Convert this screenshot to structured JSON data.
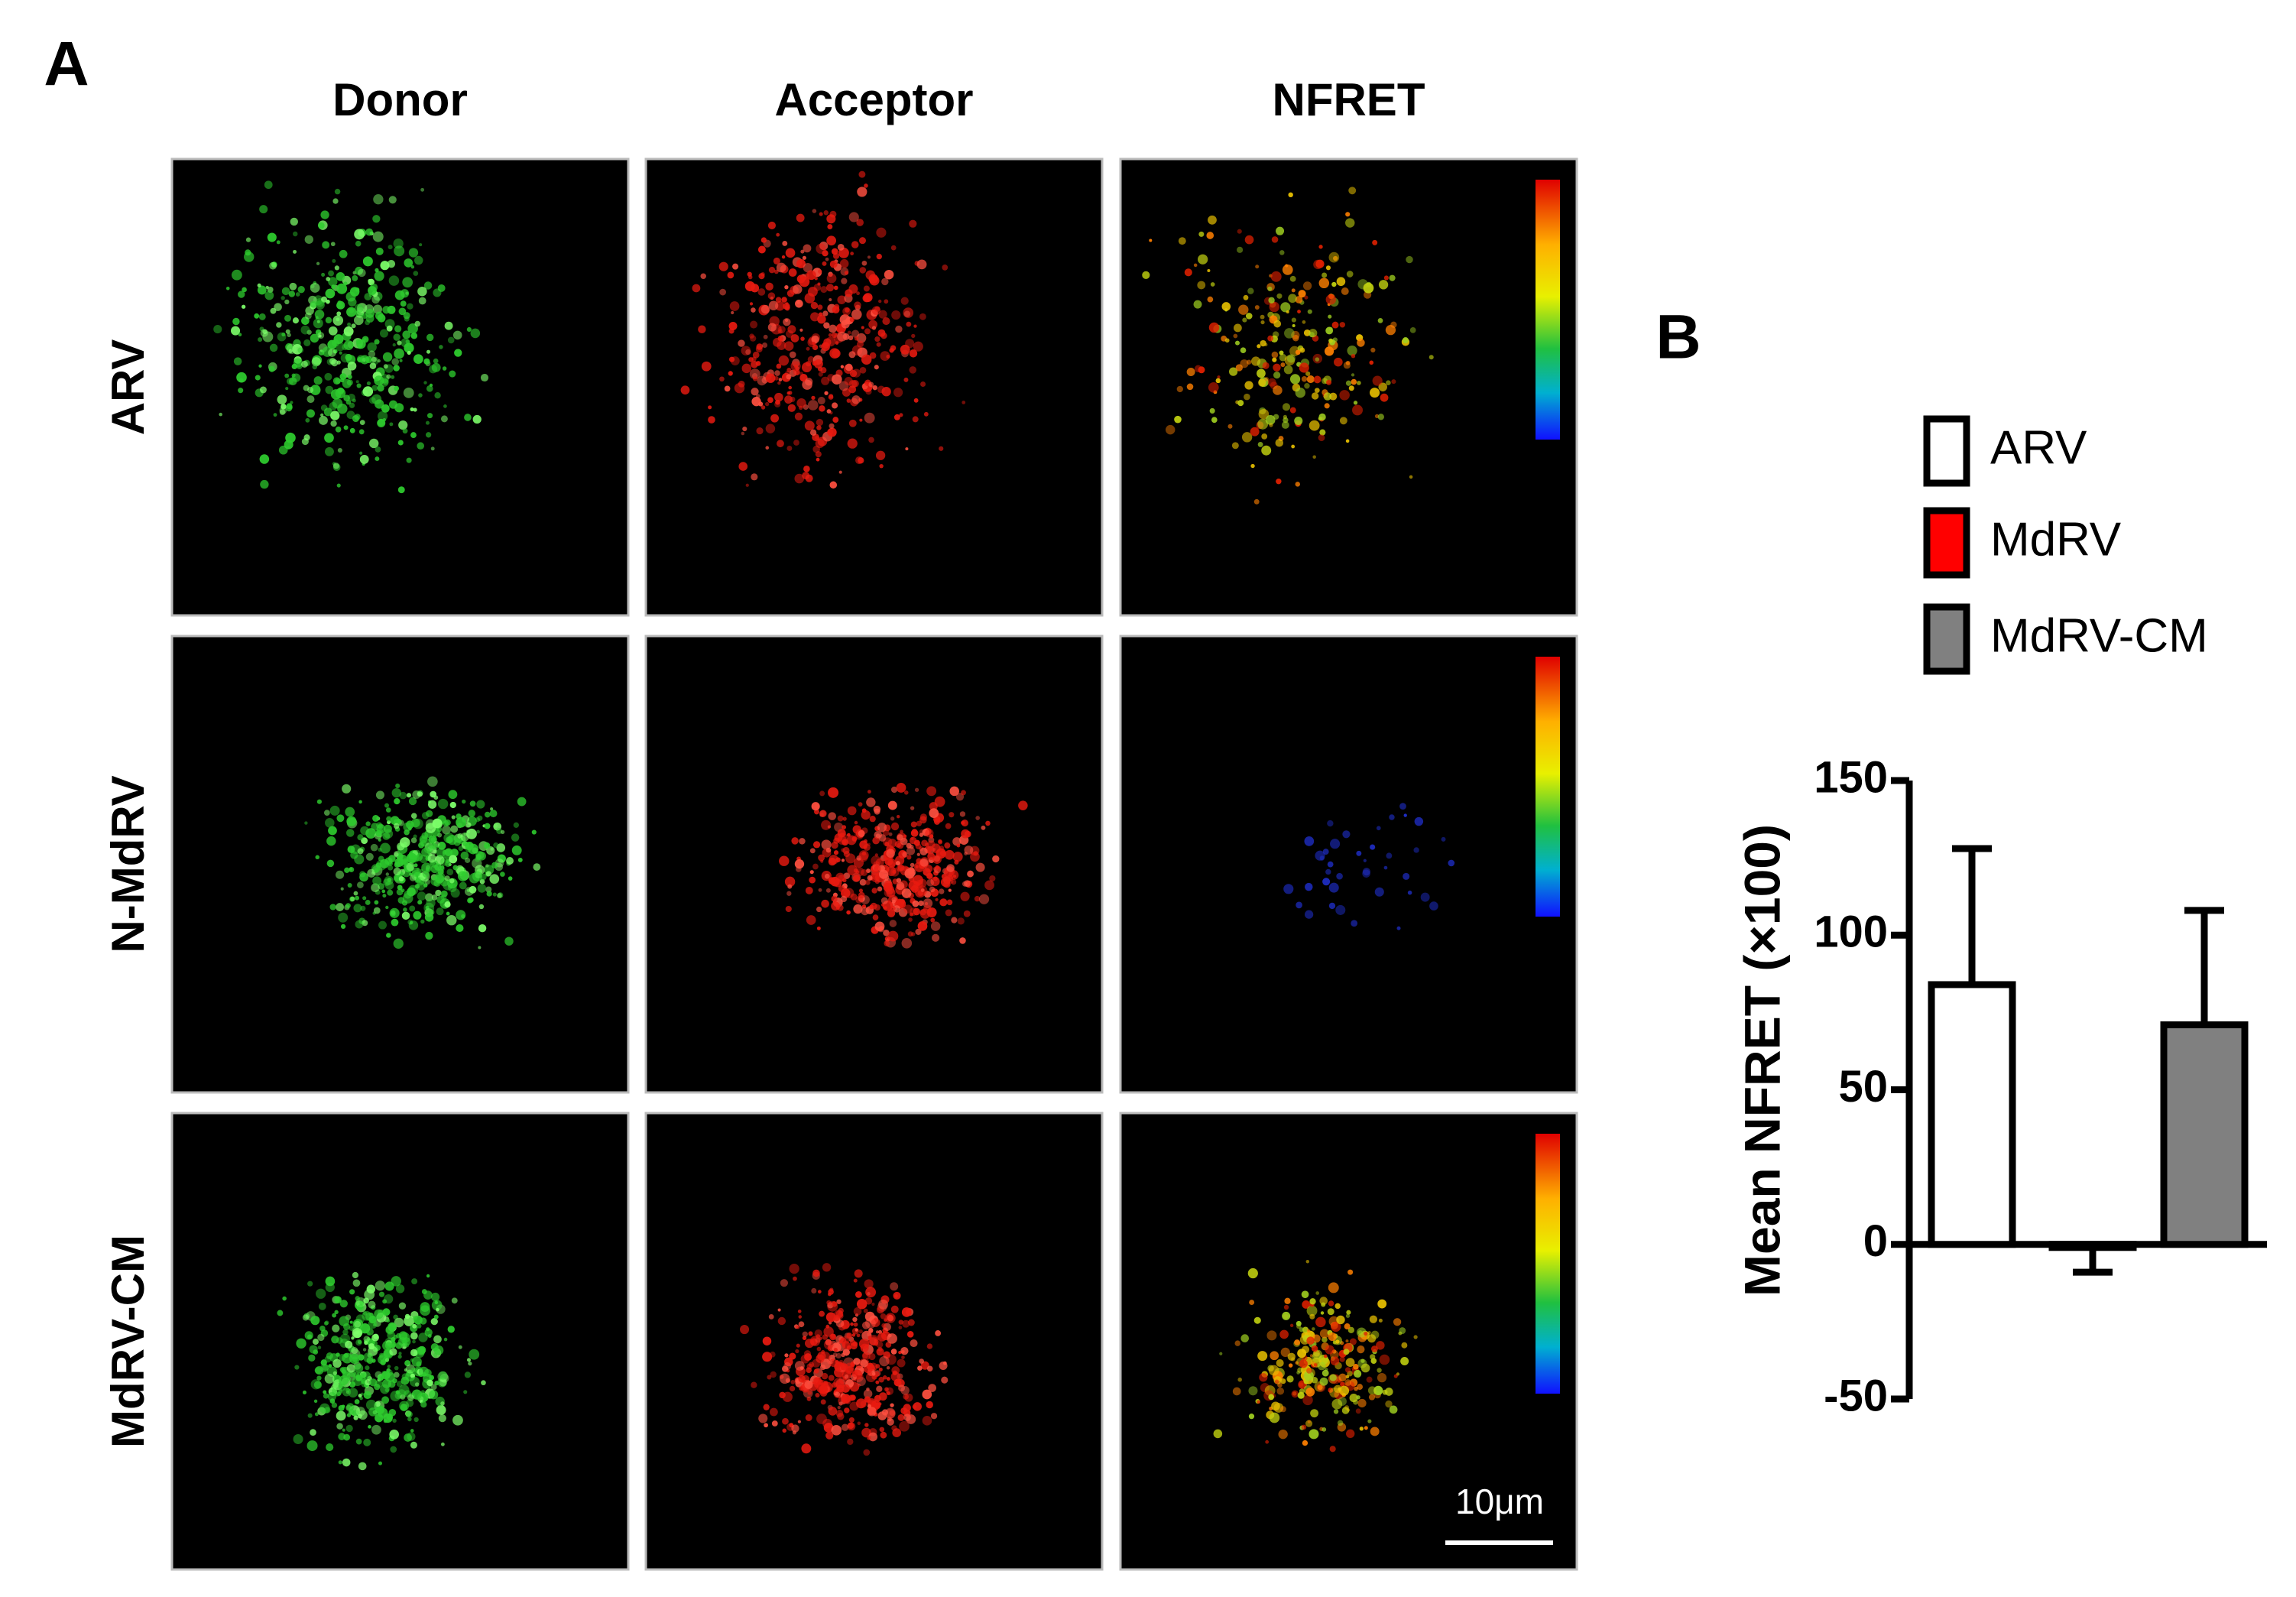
{
  "panels": {
    "a": "A",
    "b": "B"
  },
  "micrographs": {
    "columns": [
      "Donor",
      "Acceptor",
      "NFRET"
    ],
    "rows": [
      "ARV",
      "N-MdRV",
      "MdRV-CM"
    ],
    "scale_bar": "10μm"
  },
  "chart_data": {
    "type": "bar",
    "y_label": "Mean NFRET (×100)",
    "categories": [
      null
    ],
    "series": [
      {
        "name": "ARV",
        "color": "#ffffff",
        "values": [
          84
        ],
        "errors": [
          44
        ]
      },
      {
        "name": "MdRV",
        "color": "#ff0000",
        "values": [
          -1
        ],
        "errors": [
          8
        ]
      },
      {
        "name": "MdRV-CM",
        "color": "#808080",
        "values": [
          71
        ],
        "errors": [
          37
        ]
      }
    ],
    "ylim": [
      -50,
      150
    ],
    "yticks": [
      -50,
      0,
      50,
      100,
      150
    ]
  }
}
